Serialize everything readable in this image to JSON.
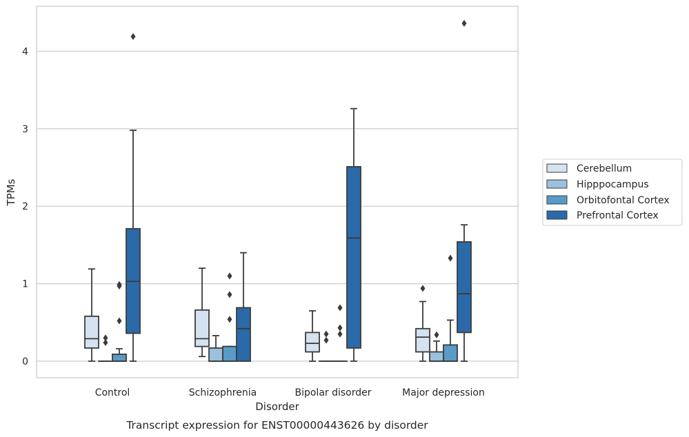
{
  "chart_data": {
    "type": "box",
    "xlabel": "Disorder",
    "ylabel": "TPMs",
    "caption": "Transcript expression for ENST00000443626 by disorder",
    "ylim": [
      -0.2,
      4.6
    ],
    "yticks": [
      0,
      1,
      2,
      3,
      4
    ],
    "grid": true,
    "legend_position": "right",
    "categories": [
      "Control",
      "Schizophrenia",
      "Bipolar disorder",
      "Major depression"
    ],
    "series": [
      {
        "name": "Cerebellum",
        "color": "#d5e2f0",
        "boxes": [
          {
            "whislo": 0,
            "q1": 0.17,
            "med": 0.29,
            "q3": 0.58,
            "whishi": 1.19,
            "fliers": []
          },
          {
            "whislo": 0.06,
            "q1": 0.19,
            "med": 0.29,
            "q3": 0.66,
            "whishi": 1.2,
            "fliers": []
          },
          {
            "whislo": 0,
            "q1": 0.12,
            "med": 0.23,
            "q3": 0.37,
            "whishi": 0.65,
            "fliers": []
          },
          {
            "whislo": 0,
            "q1": 0.12,
            "med": 0.31,
            "q3": 0.42,
            "whishi": 0.77,
            "fliers": [
              0.94
            ]
          }
        ]
      },
      {
        "name": "Hipppocampus",
        "color": "#9bc1dd",
        "boxes": [
          {
            "whislo": 0,
            "q1": 0,
            "med": 0,
            "q3": 0,
            "whishi": 0,
            "fliers": [
              0.24,
              0.3
            ]
          },
          {
            "whislo": 0,
            "q1": 0,
            "med": 0,
            "q3": 0.17,
            "whishi": 0.33,
            "fliers": []
          },
          {
            "whislo": 0,
            "q1": 0,
            "med": 0,
            "q3": 0,
            "whishi": 0,
            "fliers": [
              0.27,
              0.35
            ]
          },
          {
            "whislo": 0,
            "q1": 0,
            "med": 0,
            "q3": 0.12,
            "whishi": 0.26,
            "fliers": [
              0.34
            ]
          }
        ]
      },
      {
        "name": "Orbitofontal Cortex",
        "color": "#5a9ac6",
        "boxes": [
          {
            "whislo": 0,
            "q1": 0,
            "med": 0,
            "q3": 0.09,
            "whishi": 0.16,
            "fliers": [
              0.52,
              0.97,
              0.99
            ]
          },
          {
            "whislo": 0,
            "q1": 0,
            "med": 0,
            "q3": 0.19,
            "whishi": 0.19,
            "fliers": [
              0.54,
              0.86,
              1.1
            ]
          },
          {
            "whislo": 0,
            "q1": 0,
            "med": 0,
            "q3": 0,
            "whishi": 0,
            "fliers": [
              0.35,
              0.43,
              0.69
            ]
          },
          {
            "whislo": 0,
            "q1": 0,
            "med": 0,
            "q3": 0.21,
            "whishi": 0.53,
            "fliers": [
              1.33
            ]
          }
        ]
      },
      {
        "name": "Prefrontal Cortex",
        "color": "#2a6aa8",
        "boxes": [
          {
            "whislo": 0,
            "q1": 0.36,
            "med": 1.03,
            "q3": 1.71,
            "whishi": 2.98,
            "fliers": [
              4.19
            ]
          },
          {
            "whislo": 0,
            "q1": 0,
            "med": 0.42,
            "q3": 0.69,
            "whishi": 1.4,
            "fliers": []
          },
          {
            "whislo": 0,
            "q1": 0.17,
            "med": 1.59,
            "q3": 2.51,
            "whishi": 3.26,
            "fliers": []
          },
          {
            "whislo": 0,
            "q1": 0.37,
            "med": 0.87,
            "q3": 1.54,
            "whishi": 1.76,
            "fliers": [
              4.36
            ]
          }
        ]
      }
    ]
  }
}
